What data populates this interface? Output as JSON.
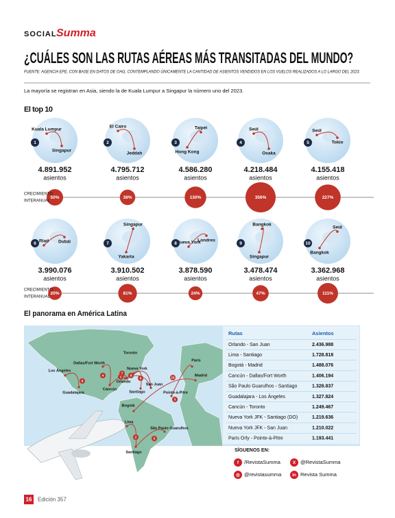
{
  "header": {
    "section": "SOCIAL",
    "brand": "Summa"
  },
  "title": "¿CUÁLES SON LAS RUTAS AÉREAS MÁS TRANSITADAS DEL MUNDO?",
  "source": "FUENTE: AGENCIA EFE, CON BASE EN DATOS DE OAG, CONTEMPLANDO ÚNICAMENTE LA CANTIDAD DE ASIENTOS VENDIDOS EN LOS VUELOS REALIZADOS A LO LARGO DEL 2023.",
  "intro": "La mayoría se registran en Asia, siendo la de Kuala Lumpur a Singapur la número uno del 2023.",
  "top10": {
    "heading": "El top 10",
    "unit": "asientos",
    "growth_label": [
      "CRECIMIENTO",
      "INTERANUAL"
    ],
    "routes": [
      {
        "rank": "1",
        "from": "Kuala Lumpur",
        "to": "Singapur",
        "seats": "4.891.952",
        "growth": {
          "value": 50,
          "label": "50%"
        }
      },
      {
        "rank": "2",
        "from": "El Cairo",
        "to": "Jeddah",
        "seats": "4.795.712",
        "growth": {
          "value": 38,
          "label": "38%"
        }
      },
      {
        "rank": "3",
        "from": "Taipéi",
        "to": "Hong Kong",
        "seats": "4.586.280",
        "growth": {
          "value": 130,
          "label": "130%"
        }
      },
      {
        "rank": "4",
        "from": "Seúl",
        "to": "Osaka",
        "seats": "4.218.484",
        "growth": {
          "value": 356,
          "label": "356%"
        }
      },
      {
        "rank": "5",
        "from": "Seúl",
        "to": "Tokio",
        "seats": "4.155.418",
        "growth": {
          "value": 227,
          "label": "227%"
        }
      },
      {
        "rank": "6",
        "from": "Riad",
        "to": "Dubái",
        "seats": "3.990.076",
        "growth": {
          "value": 20,
          "label": "20%"
        }
      },
      {
        "rank": "7",
        "from": "Singapur",
        "to": "Yakarta",
        "seats": "3.910.502",
        "growth": {
          "value": 81,
          "label": "81%"
        }
      },
      {
        "rank": "8",
        "from": "Nueva York",
        "to": "Londres",
        "seats": "3.878.590",
        "growth": {
          "value": 24,
          "label": "24%"
        }
      },
      {
        "rank": "9",
        "from": "Bangkok",
        "to": "Singapur",
        "seats": "3.478.474",
        "growth": {
          "value": 47,
          "label": "47%"
        }
      },
      {
        "rank": "10",
        "from": "Seúl",
        "to": "Bangkok",
        "seats": "3.362.968",
        "growth": {
          "value": 111,
          "label": "111%"
        }
      }
    ]
  },
  "latam": {
    "heading": "El panorama en América Latina",
    "map_cities": [
      "Toronto",
      "Dallas/Fort Worth",
      "Nueva York",
      "Los Ángeles",
      "París",
      "Madrid",
      "Orlando",
      "Cancún",
      "Guadalajara",
      "Santiago",
      "San Juan",
      "Pointe-à-Pitre",
      "Bogotá",
      "Lima",
      "São Paulo Guarulhos",
      "Santiago"
    ],
    "map_markers": [
      "1",
      "2",
      "3",
      "4",
      "5",
      "6",
      "7",
      "8",
      "9",
      "10"
    ],
    "table": {
      "columns": [
        "Rutas",
        "Asientos"
      ],
      "rows": [
        [
          "Orlando - San Juan",
          "2.436.988"
        ],
        [
          "Lima - Santiago",
          "1.728.818"
        ],
        [
          "Bogotá - Madrid",
          "1.488.076"
        ],
        [
          "Cancún - Dallas/Fort Worth",
          "1.406.194"
        ],
        [
          "São Paulo Guarulhos - Santiago",
          "1.328.837"
        ],
        [
          "Guadalajara - Los Ángeles",
          "1.327.824"
        ],
        [
          "Cancún - Toronto",
          "1.249.467"
        ],
        [
          "Nueva York JFK - Santiago (DO)",
          "1.219.636"
        ],
        [
          "Nueva York JFK - San Juan",
          "1.210.022"
        ],
        [
          "Paris Orly - Pointe-à-Pitre",
          "1.193.441"
        ]
      ]
    }
  },
  "social": {
    "heading": "SÍGUENOS EN:",
    "facebook": "/RevistaSumma",
    "x": "@RevistaSumma",
    "instagram": "@revistasumma",
    "linkedin": "Revista Summa"
  },
  "footer": {
    "page": "16",
    "edition": "Edición 357"
  }
}
